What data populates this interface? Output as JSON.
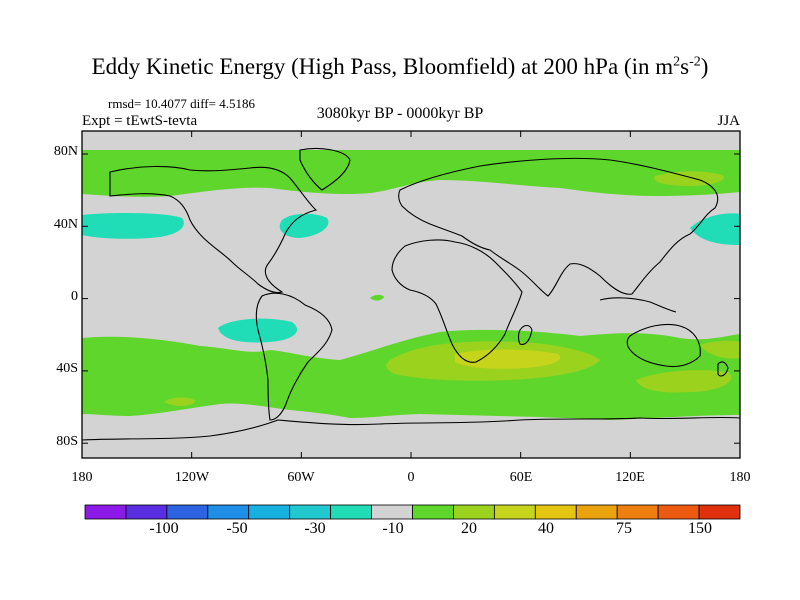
{
  "title_main": "Eddy Kinetic Energy (High Pass, Bloomfield) at 200 hPa (in m",
  "title_unit_exp1": "2",
  "title_unit_s": "s",
  "title_unit_exp2": "-2",
  "title_close": ")",
  "stats": "rmsd= 10.4077 diff= 4.5186",
  "expt": "Expt = tEwtS-tevta",
  "period": "3080kyr BP - 0000kyr BP",
  "season": "JJA",
  "lat_labels": [
    "80N",
    "40N",
    "0",
    "40S",
    "80S"
  ],
  "lon_labels": [
    "180",
    "120W",
    "60W",
    "0",
    "60E",
    "120E",
    "180"
  ],
  "colorbar": {
    "colors": [
      "#8b1ae6",
      "#5a2ee0",
      "#2d63e3",
      "#1f8ee6",
      "#18b0e0",
      "#21c8d0",
      "#20ddb8",
      "#d3d3d3",
      "#5fd62b",
      "#9ad21e",
      "#c6d41c",
      "#e3c512",
      "#eaa20f",
      "#ee7e0f",
      "#ec5a10",
      "#e0300d"
    ],
    "labels": [
      "-100",
      "-50",
      "-30",
      "-10",
      "20",
      "40",
      "75",
      "150"
    ]
  },
  "map": {
    "ocean_color": "#d3d3d3",
    "level_colors": {
      "positive_low": "#5fd62b",
      "positive_mid": "#9ad21e",
      "positive_high": "#c6d41c",
      "negative": "#20ddb8"
    }
  }
}
